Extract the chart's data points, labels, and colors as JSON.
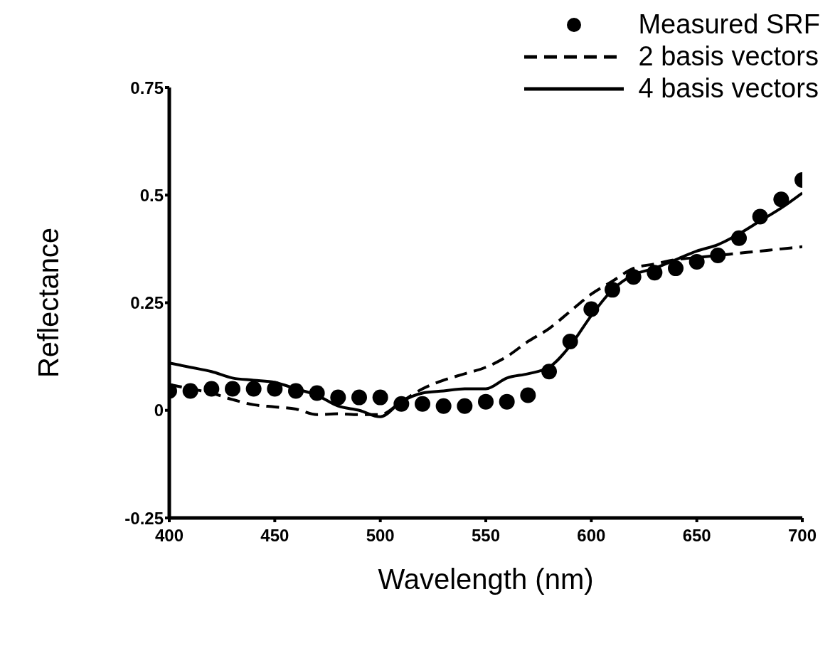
{
  "chart_data": {
    "type": "line",
    "xlabel": "Wavelength (nm)",
    "ylabel": "Reflectance",
    "x": [
      400,
      410,
      420,
      430,
      440,
      450,
      460,
      470,
      480,
      490,
      500,
      510,
      520,
      530,
      540,
      550,
      560,
      570,
      580,
      590,
      600,
      610,
      620,
      630,
      640,
      650,
      660,
      670,
      680,
      690,
      700
    ],
    "series": [
      {
        "name": "Measured SRF",
        "type": "scatter",
        "marker": "circle",
        "color": "#000000",
        "values": [
          0.045,
          0.045,
          0.05,
          0.05,
          0.05,
          0.05,
          0.045,
          0.04,
          0.03,
          0.03,
          0.03,
          0.015,
          0.015,
          0.01,
          0.01,
          0.02,
          0.02,
          0.035,
          0.09,
          0.16,
          0.235,
          0.28,
          0.31,
          0.32,
          0.33,
          0.345,
          0.36,
          0.4,
          0.45,
          0.49,
          0.535
        ]
      },
      {
        "name": "2 basis vectors",
        "line_style": "dashed",
        "color": "#000000",
        "values": [
          0.06,
          0.05,
          0.04,
          0.025,
          0.013,
          0.008,
          0.003,
          -0.01,
          -0.008,
          -0.01,
          -0.01,
          0.02,
          0.05,
          0.07,
          0.085,
          0.1,
          0.125,
          0.16,
          0.19,
          0.23,
          0.27,
          0.3,
          0.33,
          0.34,
          0.35,
          0.355,
          0.36,
          0.365,
          0.37,
          0.375,
          0.38
        ]
      },
      {
        "name": "4 basis vectors",
        "line_style": "solid",
        "color": "#000000",
        "values": [
          0.11,
          0.1,
          0.09,
          0.075,
          0.07,
          0.065,
          0.05,
          0.035,
          0.01,
          0.0,
          -0.015,
          0.02,
          0.04,
          0.045,
          0.05,
          0.05,
          0.075,
          0.085,
          0.1,
          0.15,
          0.22,
          0.28,
          0.315,
          0.33,
          0.35,
          0.37,
          0.385,
          0.41,
          0.44,
          0.47,
          0.505
        ]
      }
    ],
    "xlim": [
      400,
      700
    ],
    "xticks": [
      400,
      450,
      500,
      550,
      600,
      650,
      700
    ],
    "ylim": [
      -0.25,
      0.75
    ],
    "yticks": [
      -0.25,
      0,
      0.25,
      0.5,
      0.75
    ],
    "legend": "top right",
    "grid": false
  }
}
